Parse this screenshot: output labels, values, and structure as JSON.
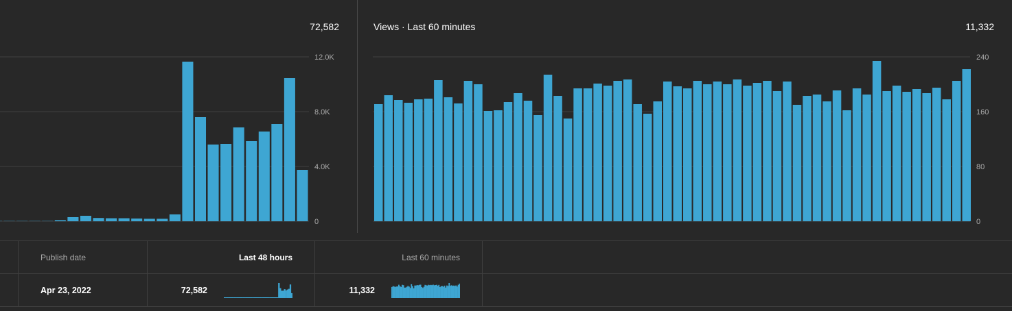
{
  "left_panel": {
    "total": "72,582",
    "yticks": [
      "0",
      "4.0K",
      "8.0K",
      "12.0K"
    ]
  },
  "right_panel": {
    "title": "Views · Last 60 minutes",
    "total": "11,332",
    "yticks": [
      "0",
      "80",
      "160",
      "240"
    ]
  },
  "table": {
    "headers": {
      "publish_date": "Publish date",
      "last_48": "Last 48 hours",
      "last_60": "Last 60 minutes"
    },
    "row": {
      "publish_date": "Apr 23, 2022",
      "last_48_value": "72,582",
      "last_60_value": "11,332"
    }
  },
  "colors": {
    "bar": "#3ea6d3",
    "background": "#282828",
    "grid": "#3f3f3f",
    "muted_text": "#aaaaaa"
  },
  "chart_data": [
    {
      "type": "bar",
      "title": "",
      "unit": "views per hour",
      "ylim": [
        0,
        12000
      ],
      "yticks": [
        0,
        4000,
        8000,
        12000
      ],
      "values": [
        20,
        20,
        20,
        20,
        20,
        80,
        300,
        400,
        240,
        220,
        220,
        200,
        180,
        180,
        500,
        11650,
        7600,
        5600,
        5650,
        6850,
        5850,
        6550,
        7100,
        10450,
        3750
      ]
    },
    {
      "type": "bar",
      "title": "Views · Last 60 minutes",
      "unit": "views per minute",
      "ylim": [
        0,
        240
      ],
      "yticks": [
        0,
        80,
        160,
        240
      ],
      "values": [
        171,
        184,
        177,
        173,
        178,
        179,
        206,
        181,
        172,
        205,
        200,
        161,
        162,
        174,
        187,
        176,
        155,
        214,
        183,
        150,
        194,
        194,
        201,
        198,
        205,
        207,
        171,
        157,
        175,
        204,
        197,
        194,
        205,
        200,
        204,
        200,
        207,
        198,
        202,
        205,
        190,
        204,
        170,
        183,
        185,
        175,
        191,
        162,
        194,
        185,
        234,
        190,
        198,
        189,
        193,
        187,
        195,
        178,
        205,
        222
      ]
    }
  ]
}
